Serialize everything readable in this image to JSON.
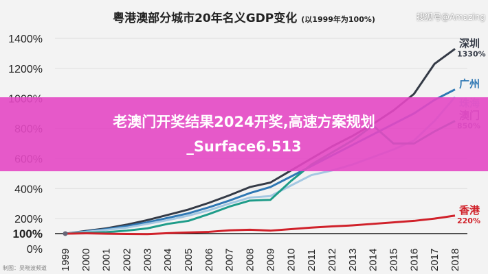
{
  "chart_data": {
    "type": "line",
    "title": "粤港澳部分城市20年名义GDP变化",
    "subtitle": "(以1999年为100%)",
    "x": [
      1999,
      2000,
      2001,
      2002,
      2003,
      2004,
      2005,
      2006,
      2007,
      2008,
      2009,
      2010,
      2011,
      2012,
      2013,
      2014,
      2015,
      2016,
      2017,
      2018
    ],
    "yticks": [
      "0%",
      "100%",
      "200%",
      "400%",
      "600%",
      "800%",
      "1000%",
      "1200%",
      "1400%"
    ],
    "ytick_values": [
      0,
      100,
      200,
      400,
      600,
      800,
      1000,
      1200,
      1400
    ],
    "ylim": [
      0,
      1400
    ],
    "grid": true,
    "series": [
      {
        "name": "深圳",
        "end_label": "1330%",
        "color": "#343a46",
        "values": [
          100,
          118,
          135,
          160,
          190,
          225,
          260,
          305,
          355,
          410,
          440,
          520,
          600,
          680,
          750,
          830,
          920,
          1030,
          1230,
          1330
        ]
      },
      {
        "name": "广州",
        "end_label": "",
        "color": "#2f78b4",
        "values": [
          100,
          115,
          130,
          150,
          175,
          205,
          235,
          275,
          320,
          370,
          410,
          480,
          550,
          620,
          690,
          760,
          830,
          900,
          990,
          1060
        ]
      },
      {
        "name": "珠海",
        "end_label": "",
        "color": "#a4c8e2",
        "values": [
          100,
          112,
          125,
          140,
          165,
          190,
          220,
          255,
          300,
          340,
          350,
          420,
          490,
          520,
          560,
          610,
          660,
          720,
          850,
          1010
        ]
      },
      {
        "name": "澳门",
        "end_label": "850%",
        "color": "#1e9c89",
        "label_color": "#7d5a94",
        "values": [
          100,
          105,
          110,
          120,
          135,
          165,
          185,
          230,
          280,
          320,
          325,
          450,
          560,
          640,
          720,
          820,
          700,
          700,
          780,
          850
        ]
      },
      {
        "name": "香港",
        "end_label": "220%",
        "color": "#d0212a",
        "values": [
          100,
          102,
          100,
          98,
          97,
          103,
          108,
          112,
          122,
          126,
          120,
          130,
          140,
          148,
          155,
          165,
          175,
          185,
          200,
          220
        ]
      }
    ]
  },
  "banner": {
    "text": "老澳门开奖结果2024开奖,高速方案规划_Surface6.513"
  },
  "watermarks": {
    "left": "制图：吴晓波频道",
    "right": "搜狐号@Amazing"
  }
}
